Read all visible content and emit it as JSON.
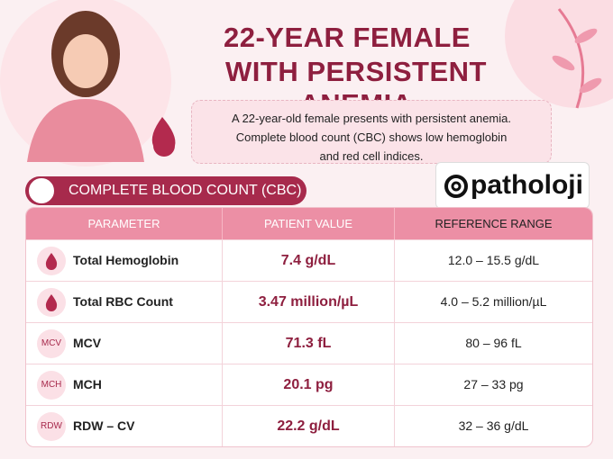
{
  "header": {
    "title_lines": [
      "22-YEAR FEMALE",
      "WITH PERSISTENT ANEMIA"
    ]
  },
  "description": [
    "A 22-year-old female presents with persistent anemia.",
    "Complete blood count (CBC) shows low hemoglobin",
    "and red cell indices."
  ],
  "section_title": "COMPLETE BLOOD COUNT (CBC)",
  "brand": "patholoji",
  "table": {
    "columns": [
      "PARAMETER",
      "PATIENT VALUE",
      "REFERENCE RANGE"
    ],
    "rows": [
      {
        "parameter": "Total Hemoglobin",
        "value": "7.4 g/dL",
        "reference": "12.0 – 15.5 g/dL"
      },
      {
        "parameter": "Total RBC Count",
        "value": "3.47 million/µL",
        "reference": "4.0 – 5.2 million/µL"
      },
      {
        "badge": "MCV",
        "parameter": "MCV",
        "value": "71.3 fL",
        "reference": "80 – 96 fL"
      },
      {
        "badge": "MCH",
        "parameter": "MCH",
        "value": "20.1 pg",
        "reference": "27 – 33 pg"
      },
      {
        "badge": "RDW",
        "parameter": "RDW – CV",
        "value": "22.2 g/dL",
        "reference": "32 – 36 g/dL"
      }
    ]
  }
}
